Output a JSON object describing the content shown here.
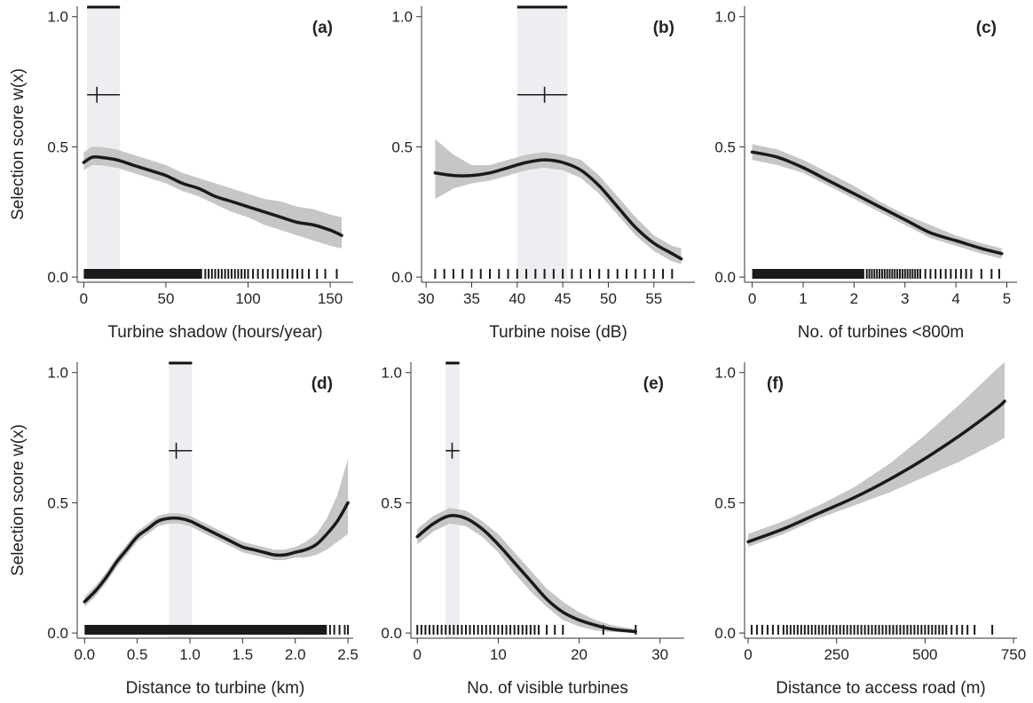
{
  "chart_data": [
    {
      "type": "line",
      "panel_label": "(a)",
      "xlabel": "Turbine shadow (hours/year)",
      "ylabel": "Selection score w(x)",
      "xlim": [
        -4,
        164
      ],
      "ylim": [
        -0.02,
        1.04
      ],
      "xticks": [
        0,
        50,
        100,
        150
      ],
      "yticks": [
        0.0,
        0.5,
        1.0
      ],
      "ytick_labels": [
        "0.0",
        "0.5",
        "1.0"
      ],
      "shaded_interval": [
        2,
        22
      ],
      "marker": {
        "x": 8,
        "y": 0.7,
        "xerr": [
          2,
          22
        ]
      },
      "fit": {
        "x": [
          0,
          5,
          10,
          20,
          30,
          40,
          50,
          60,
          70,
          80,
          90,
          100,
          110,
          120,
          130,
          140,
          150,
          157
        ],
        "y": [
          0.44,
          0.46,
          0.46,
          0.45,
          0.43,
          0.41,
          0.39,
          0.36,
          0.34,
          0.31,
          0.29,
          0.27,
          0.25,
          0.23,
          0.21,
          0.2,
          0.18,
          0.16
        ],
        "lower": [
          0.41,
          0.43,
          0.43,
          0.42,
          0.4,
          0.38,
          0.36,
          0.33,
          0.31,
          0.28,
          0.25,
          0.23,
          0.2,
          0.18,
          0.16,
          0.14,
          0.12,
          0.11
        ],
        "upper": [
          0.48,
          0.5,
          0.5,
          0.49,
          0.47,
          0.45,
          0.43,
          0.4,
          0.38,
          0.36,
          0.34,
          0.32,
          0.3,
          0.29,
          0.27,
          0.26,
          0.24,
          0.23
        ]
      },
      "rug": {
        "dense": [
          [
            0,
            72
          ]
        ],
        "ticks": [
          74,
          76,
          78,
          80,
          82,
          84,
          86,
          88,
          90,
          92,
          94,
          96,
          98,
          100,
          103,
          106,
          109,
          112,
          115,
          118,
          121,
          124,
          127,
          130,
          133,
          137,
          142,
          147,
          154
        ]
      }
    },
    {
      "type": "line",
      "panel_label": "(b)",
      "xlabel": "Turbine noise (dB)",
      "ylabel": "",
      "xlim": [
        29.5,
        59.5
      ],
      "ylim": [
        -0.02,
        1.04
      ],
      "xticks": [
        30,
        35,
        40,
        45,
        50,
        55
      ],
      "yticks": [
        0.0,
        0.5,
        1.0
      ],
      "ytick_labels": [
        "0.0",
        "0.5",
        "1.0"
      ],
      "shaded_interval": [
        40,
        45.5
      ],
      "marker": {
        "x": 43,
        "y": 0.7,
        "xerr": [
          40,
          45.5
        ]
      },
      "fit": {
        "x": [
          31,
          33,
          35,
          37,
          39,
          41,
          43,
          45,
          47,
          49,
          51,
          53,
          55,
          57,
          58
        ],
        "y": [
          0.4,
          0.39,
          0.39,
          0.4,
          0.42,
          0.44,
          0.45,
          0.44,
          0.41,
          0.35,
          0.27,
          0.19,
          0.13,
          0.09,
          0.07
        ],
        "lower": [
          0.3,
          0.34,
          0.36,
          0.37,
          0.39,
          0.41,
          0.42,
          0.41,
          0.38,
          0.32,
          0.24,
          0.16,
          0.1,
          0.06,
          0.05
        ],
        "upper": [
          0.53,
          0.47,
          0.43,
          0.43,
          0.45,
          0.47,
          0.48,
          0.47,
          0.45,
          0.39,
          0.31,
          0.23,
          0.16,
          0.12,
          0.11
        ]
      },
      "rug": {
        "dense": [],
        "ticks": [
          31,
          32,
          33,
          34,
          35,
          36,
          37,
          38,
          39,
          40,
          41,
          42,
          43,
          44,
          45,
          46,
          47,
          48,
          49,
          50,
          51,
          52,
          53,
          54,
          55,
          56,
          57
        ]
      }
    },
    {
      "type": "line",
      "panel_label": "(c)",
      "xlabel": "No. of turbines <800m",
      "ylabel": "",
      "xlim": [
        -0.15,
        5.2
      ],
      "ylim": [
        -0.02,
        1.04
      ],
      "xticks": [
        0,
        1,
        2,
        3,
        4,
        5
      ],
      "yticks": [
        0.0,
        0.5,
        1.0
      ],
      "ytick_labels": [
        "0.0",
        "0.5",
        "1.0"
      ],
      "fit": {
        "x": [
          0,
          0.5,
          1,
          1.5,
          2,
          2.5,
          3,
          3.5,
          4,
          4.5,
          4.9
        ],
        "y": [
          0.48,
          0.46,
          0.42,
          0.37,
          0.32,
          0.27,
          0.22,
          0.17,
          0.14,
          0.11,
          0.09
        ],
        "lower": [
          0.45,
          0.43,
          0.4,
          0.35,
          0.3,
          0.25,
          0.2,
          0.15,
          0.12,
          0.09,
          0.07
        ],
        "upper": [
          0.51,
          0.49,
          0.45,
          0.4,
          0.35,
          0.29,
          0.24,
          0.2,
          0.16,
          0.13,
          0.11
        ]
      },
      "rug": {
        "dense": [
          [
            0,
            2.2
          ]
        ],
        "ticks": [
          2.25,
          2.3,
          2.35,
          2.4,
          2.45,
          2.5,
          2.55,
          2.6,
          2.65,
          2.7,
          2.75,
          2.8,
          2.85,
          2.9,
          2.95,
          3.0,
          3.05,
          3.1,
          3.15,
          3.2,
          3.25,
          3.3,
          3.4,
          3.5,
          3.6,
          3.7,
          3.8,
          3.9,
          4.0,
          4.1,
          4.2,
          4.3,
          4.5,
          4.7,
          4.85
        ]
      }
    },
    {
      "type": "line",
      "panel_label": "(d)",
      "xlabel": "Distance to turbine (km)",
      "ylabel": "Selection score w(x)",
      "xlim": [
        -0.07,
        2.55
      ],
      "ylim": [
        -0.02,
        1.04
      ],
      "xticks": [
        0.0,
        0.5,
        1.0,
        1.5,
        2.0,
        2.5
      ],
      "xtick_labels": [
        "0.0",
        "0.5",
        "1.0",
        "1.5",
        "2.0",
        "2.5"
      ],
      "yticks": [
        0.0,
        0.5,
        1.0
      ],
      "ytick_labels": [
        "0.0",
        "0.5",
        "1.0"
      ],
      "shaded_interval": [
        0.8,
        1.02
      ],
      "marker": {
        "x": 0.87,
        "y": 0.7,
        "xerr": [
          0.8,
          1.02
        ]
      },
      "fit": {
        "x": [
          0.0,
          0.1,
          0.2,
          0.3,
          0.4,
          0.5,
          0.6,
          0.7,
          0.8,
          0.9,
          1.0,
          1.1,
          1.2,
          1.3,
          1.4,
          1.5,
          1.6,
          1.7,
          1.8,
          1.9,
          2.0,
          2.1,
          2.2,
          2.3,
          2.4,
          2.5
        ],
        "y": [
          0.12,
          0.16,
          0.21,
          0.27,
          0.32,
          0.37,
          0.4,
          0.43,
          0.44,
          0.44,
          0.43,
          0.41,
          0.39,
          0.37,
          0.35,
          0.33,
          0.32,
          0.31,
          0.3,
          0.3,
          0.31,
          0.32,
          0.34,
          0.38,
          0.43,
          0.5
        ],
        "lower": [
          0.1,
          0.14,
          0.19,
          0.25,
          0.3,
          0.35,
          0.38,
          0.41,
          0.42,
          0.42,
          0.41,
          0.39,
          0.37,
          0.35,
          0.33,
          0.31,
          0.3,
          0.29,
          0.28,
          0.28,
          0.29,
          0.29,
          0.3,
          0.32,
          0.35,
          0.38
        ],
        "upper": [
          0.14,
          0.18,
          0.23,
          0.29,
          0.34,
          0.39,
          0.42,
          0.45,
          0.46,
          0.46,
          0.45,
          0.43,
          0.41,
          0.39,
          0.37,
          0.35,
          0.34,
          0.33,
          0.32,
          0.32,
          0.33,
          0.35,
          0.38,
          0.44,
          0.53,
          0.67
        ]
      },
      "rug": {
        "dense": [
          [
            0.0,
            2.3
          ]
        ],
        "ticks": [
          2.33,
          2.37,
          2.42,
          2.47,
          2.5
        ]
      }
    },
    {
      "type": "line",
      "panel_label": "(e)",
      "xlabel": "No. of visible turbines",
      "ylabel": "",
      "xlim": [
        -0.8,
        33
      ],
      "ylim": [
        -0.02,
        1.04
      ],
      "xticks": [
        0,
        10,
        20,
        30
      ],
      "yticks": [
        0.0,
        0.5,
        1.0
      ],
      "ytick_labels": [
        "0.0",
        "0.5",
        "1.0"
      ],
      "shaded_interval": [
        3.5,
        5.2
      ],
      "marker": {
        "x": 4.3,
        "y": 0.7,
        "xerr": [
          3.5,
          5.2
        ]
      },
      "fit": {
        "x": [
          0,
          2,
          4,
          6,
          8,
          10,
          12,
          14,
          16,
          18,
          20,
          22,
          24,
          26,
          27
        ],
        "y": [
          0.37,
          0.42,
          0.45,
          0.44,
          0.4,
          0.34,
          0.27,
          0.2,
          0.13,
          0.08,
          0.05,
          0.03,
          0.015,
          0.008,
          0.005
        ],
        "lower": [
          0.34,
          0.39,
          0.42,
          0.41,
          0.37,
          0.31,
          0.23,
          0.16,
          0.1,
          0.05,
          0.025,
          0.01,
          0.004,
          0.002,
          0.001
        ],
        "upper": [
          0.4,
          0.45,
          0.48,
          0.47,
          0.43,
          0.38,
          0.31,
          0.24,
          0.17,
          0.12,
          0.08,
          0.05,
          0.03,
          0.02,
          0.015
        ]
      },
      "rug": {
        "dense": [],
        "ticks": [
          0,
          0.5,
          1,
          1.5,
          2,
          2.5,
          3,
          3.5,
          4,
          4.5,
          5,
          5.5,
          6,
          6.5,
          7,
          7.5,
          8,
          8.5,
          9,
          9.5,
          10,
          10.5,
          11,
          11.5,
          12,
          12.5,
          13,
          13.5,
          14,
          14.5,
          15,
          16,
          17,
          18,
          23,
          27
        ]
      }
    },
    {
      "type": "line",
      "panel_label": "(f)",
      "xlabel": "Distance to access road (m)",
      "ylabel": "",
      "xlim": [
        -10,
        760
      ],
      "ylim": [
        -0.02,
        1.04
      ],
      "xticks": [
        0,
        250,
        500,
        750
      ],
      "yticks": [
        0.0,
        0.5,
        1.0
      ],
      "ytick_labels": [
        "0.0",
        "0.5",
        "1.0"
      ],
      "fit": {
        "x": [
          0,
          100,
          200,
          300,
          400,
          500,
          600,
          700,
          725
        ],
        "y": [
          0.35,
          0.4,
          0.46,
          0.52,
          0.59,
          0.67,
          0.76,
          0.86,
          0.89
        ],
        "lower": [
          0.33,
          0.38,
          0.44,
          0.49,
          0.54,
          0.6,
          0.66,
          0.73,
          0.75
        ],
        "upper": [
          0.38,
          0.43,
          0.49,
          0.56,
          0.65,
          0.76,
          0.88,
          1.01,
          1.04
        ]
      },
      "rug": {
        "dense": [],
        "ticks": [
          10,
          25,
          40,
          55,
          70,
          85,
          100,
          110,
          120,
          130,
          140,
          150,
          160,
          170,
          180,
          190,
          200,
          210,
          220,
          230,
          240,
          250,
          260,
          270,
          280,
          290,
          300,
          310,
          320,
          330,
          340,
          350,
          360,
          370,
          380,
          390,
          400,
          410,
          420,
          430,
          440,
          450,
          460,
          470,
          480,
          490,
          500,
          510,
          520,
          530,
          540,
          550,
          560,
          575,
          590,
          605,
          620,
          640,
          690
        ]
      }
    }
  ]
}
